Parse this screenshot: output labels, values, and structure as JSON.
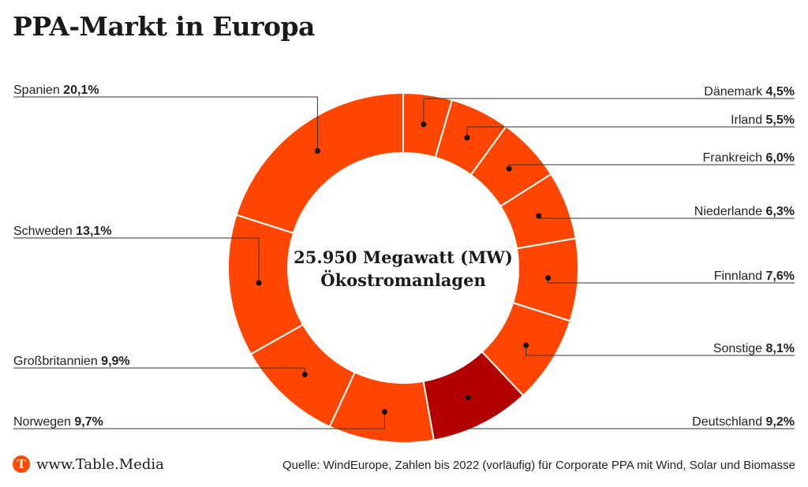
{
  "header": {
    "title": "PPA-Markt in Europa"
  },
  "chart_data": {
    "type": "pie",
    "variant": "donut",
    "center_label": [
      "25.950 Megawatt (MW)",
      "Ökostromanlagen"
    ],
    "slices": [
      {
        "name": "Dänemark",
        "value": 4.5,
        "value_label": "4,5%",
        "side": "right",
        "color": "#ff4500"
      },
      {
        "name": "Irland",
        "value": 5.5,
        "value_label": "5,5%",
        "side": "right",
        "color": "#ff4500"
      },
      {
        "name": "Frankreich",
        "value": 6.0,
        "value_label": "6,0%",
        "side": "right",
        "color": "#ff4500"
      },
      {
        "name": "Niederlande",
        "value": 6.3,
        "value_label": "6,3%",
        "side": "right",
        "color": "#ff4500"
      },
      {
        "name": "Finnland",
        "value": 7.6,
        "value_label": "7,6%",
        "side": "right",
        "color": "#ff4500"
      },
      {
        "name": "Sonstige",
        "value": 8.1,
        "value_label": "8,1%",
        "side": "right",
        "color": "#ff4500"
      },
      {
        "name": "Deutschland",
        "value": 9.2,
        "value_label": "9,2%",
        "side": "right",
        "color": "#b30000"
      },
      {
        "name": "Norwegen",
        "value": 9.7,
        "value_label": "9,7%",
        "side": "left",
        "color": "#ff4500"
      },
      {
        "name": "Großbritannien",
        "value": 9.9,
        "value_label": "9,9%",
        "side": "left",
        "color": "#ff4500"
      },
      {
        "name": "Schweden",
        "value": 13.1,
        "value_label": "13,1%",
        "side": "left",
        "color": "#ff4500"
      },
      {
        "name": "Spanien",
        "value": 20.1,
        "value_label": "20,1%",
        "side": "left",
        "color": "#ff4500"
      }
    ],
    "slice_border_color": "#ffffff",
    "leader_line_color": "#333333"
  },
  "footer": {
    "logo_letter": "T",
    "site": "www.Table.Media",
    "source": "Quelle: WindEurope, Zahlen bis 2022 (vorläufig) für Corporate PPA mit Wind, Solar und Biomasse"
  },
  "colors": {
    "brand": "#ff4a00"
  }
}
